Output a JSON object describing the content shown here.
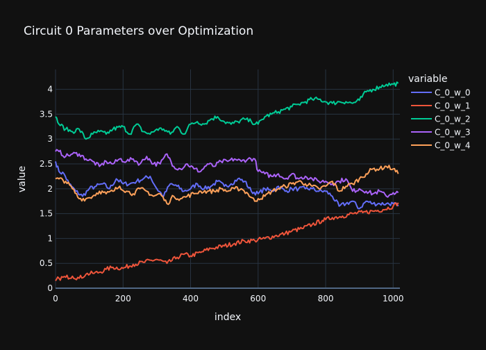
{
  "chart_data": {
    "type": "line",
    "title": "Circuit 0 Parameters over Optimization",
    "xlabel": "index",
    "ylabel": "value",
    "xlim": [
      0,
      1020
    ],
    "ylim": [
      0,
      4.4
    ],
    "x_ticks": [
      0,
      200,
      400,
      600,
      800,
      1000
    ],
    "y_ticks": [
      0,
      0.5,
      1,
      1.5,
      2,
      2.5,
      3,
      3.5,
      4
    ],
    "x_tick_labels": [
      "0",
      "200",
      "400",
      "600",
      "800",
      "1000"
    ],
    "y_tick_labels": [
      "0",
      "0.5",
      "1",
      "1.5",
      "2",
      "2.5",
      "3",
      "3.5",
      "4"
    ],
    "grid": true,
    "legend": {
      "title": "variable",
      "position": "top-right"
    },
    "series": [
      {
        "name": "C_0_w_0",
        "color": "#636efa",
        "x": [
          0,
          10,
          25,
          40,
          60,
          80,
          100,
          120,
          140,
          160,
          180,
          200,
          220,
          240,
          260,
          280,
          300,
          320,
          340,
          360,
          380,
          400,
          420,
          440,
          460,
          480,
          500,
          520,
          540,
          560,
          580,
          600,
          620,
          640,
          660,
          680,
          700,
          720,
          740,
          760,
          780,
          800,
          820,
          840,
          860,
          880,
          900,
          920,
          940,
          960,
          980,
          1000,
          1015
        ],
        "y": [
          2.55,
          2.35,
          2.3,
          2.1,
          1.95,
          1.85,
          2.0,
          2.05,
          2.1,
          2.0,
          2.2,
          2.1,
          2.1,
          2.15,
          2.2,
          2.25,
          2.0,
          1.85,
          2.1,
          2.05,
          1.95,
          2.0,
          2.1,
          2.0,
          2.05,
          2.15,
          2.05,
          2.1,
          2.2,
          2.15,
          1.95,
          1.9,
          2.0,
          1.95,
          2.05,
          1.95,
          2.0,
          2.0,
          2.0,
          2.0,
          1.95,
          1.95,
          1.85,
          1.65,
          1.7,
          1.75,
          1.6,
          1.75,
          1.7,
          1.7,
          1.7,
          1.7,
          1.65
        ]
      },
      {
        "name": "C_0_w_1",
        "color": "#ef553b",
        "x": [
          0,
          10,
          30,
          50,
          70,
          90,
          110,
          130,
          150,
          170,
          200,
          230,
          260,
          300,
          330,
          360,
          380,
          400,
          430,
          460,
          500,
          530,
          560,
          590,
          620,
          650,
          680,
          700,
          730,
          760,
          790,
          800,
          820,
          850,
          880,
          910,
          940,
          970,
          1000,
          1015
        ],
        "y": [
          0.15,
          0.2,
          0.22,
          0.24,
          0.2,
          0.28,
          0.3,
          0.32,
          0.38,
          0.42,
          0.4,
          0.48,
          0.52,
          0.58,
          0.5,
          0.62,
          0.68,
          0.65,
          0.72,
          0.8,
          0.85,
          0.9,
          0.95,
          0.96,
          1.0,
          1.05,
          1.1,
          1.15,
          1.2,
          1.28,
          1.36,
          1.38,
          1.42,
          1.45,
          1.5,
          1.52,
          1.55,
          1.58,
          1.65,
          1.72
        ]
      },
      {
        "name": "C_0_w_2",
        "color": "#00cc96",
        "x": [
          0,
          10,
          30,
          50,
          70,
          90,
          110,
          130,
          150,
          170,
          200,
          220,
          240,
          260,
          280,
          300,
          320,
          340,
          360,
          380,
          400,
          420,
          440,
          460,
          480,
          500,
          520,
          540,
          560,
          580,
          600,
          620,
          640,
          660,
          680,
          700,
          720,
          740,
          760,
          780,
          800,
          820,
          840,
          860,
          880,
          900,
          920,
          940,
          960,
          980,
          1000,
          1015
        ],
        "y": [
          3.45,
          3.3,
          3.2,
          3.15,
          3.2,
          3.0,
          3.1,
          3.15,
          3.1,
          3.2,
          3.25,
          3.1,
          3.3,
          3.15,
          3.1,
          3.2,
          3.2,
          3.1,
          3.25,
          3.1,
          3.3,
          3.35,
          3.3,
          3.4,
          3.45,
          3.35,
          3.3,
          3.35,
          3.4,
          3.35,
          3.3,
          3.45,
          3.5,
          3.55,
          3.6,
          3.65,
          3.7,
          3.75,
          3.8,
          3.8,
          3.75,
          3.72,
          3.75,
          3.75,
          3.72,
          3.78,
          3.95,
          4.0,
          4.05,
          4.1,
          4.1,
          4.12
        ]
      },
      {
        "name": "C_0_w_3",
        "color": "#ab63fa",
        "x": [
          0,
          10,
          30,
          50,
          70,
          90,
          110,
          130,
          150,
          170,
          190,
          210,
          230,
          250,
          270,
          290,
          310,
          330,
          350,
          370,
          390,
          410,
          430,
          450,
          470,
          490,
          510,
          530,
          550,
          570,
          590,
          600,
          620,
          640,
          660,
          680,
          700,
          720,
          740,
          760,
          780,
          800,
          820,
          840,
          860,
          880,
          900,
          920,
          940,
          960,
          980,
          1000,
          1015
        ],
        "y": [
          2.75,
          2.75,
          2.65,
          2.7,
          2.7,
          2.6,
          2.55,
          2.45,
          2.55,
          2.5,
          2.6,
          2.55,
          2.6,
          2.5,
          2.65,
          2.5,
          2.5,
          2.7,
          2.45,
          2.4,
          2.5,
          2.4,
          2.35,
          2.5,
          2.45,
          2.55,
          2.55,
          2.6,
          2.55,
          2.6,
          2.6,
          2.35,
          2.3,
          2.25,
          2.3,
          2.2,
          2.3,
          2.2,
          2.25,
          2.2,
          2.15,
          2.15,
          2.1,
          2.15,
          2.2,
          1.95,
          2.0,
          1.95,
          1.9,
          1.95,
          1.85,
          1.92,
          1.92
        ]
      },
      {
        "name": "C_0_w_4",
        "color": "#ffa15a",
        "x": [
          0,
          10,
          30,
          50,
          70,
          90,
          110,
          130,
          150,
          170,
          190,
          210,
          230,
          250,
          270,
          290,
          310,
          330,
          350,
          370,
          390,
          410,
          430,
          450,
          470,
          490,
          510,
          530,
          550,
          570,
          590,
          600,
          620,
          640,
          660,
          680,
          700,
          720,
          740,
          760,
          780,
          800,
          820,
          840,
          860,
          880,
          900,
          920,
          940,
          960,
          980,
          1000,
          1015
        ],
        "y": [
          2.2,
          2.2,
          2.15,
          2.0,
          1.8,
          1.8,
          1.85,
          1.95,
          1.9,
          1.95,
          2.05,
          1.95,
          1.9,
          2.0,
          1.95,
          1.85,
          1.9,
          1.7,
          1.85,
          1.8,
          1.85,
          1.9,
          1.95,
          1.95,
          1.95,
          2.0,
          1.95,
          2.0,
          2.0,
          1.9,
          1.75,
          1.8,
          1.85,
          1.95,
          2.0,
          2.05,
          2.1,
          2.15,
          2.1,
          2.05,
          2.0,
          2.05,
          2.15,
          1.95,
          2.05,
          2.1,
          2.2,
          2.3,
          2.4,
          2.4,
          2.45,
          2.4,
          2.3
        ]
      }
    ]
  }
}
